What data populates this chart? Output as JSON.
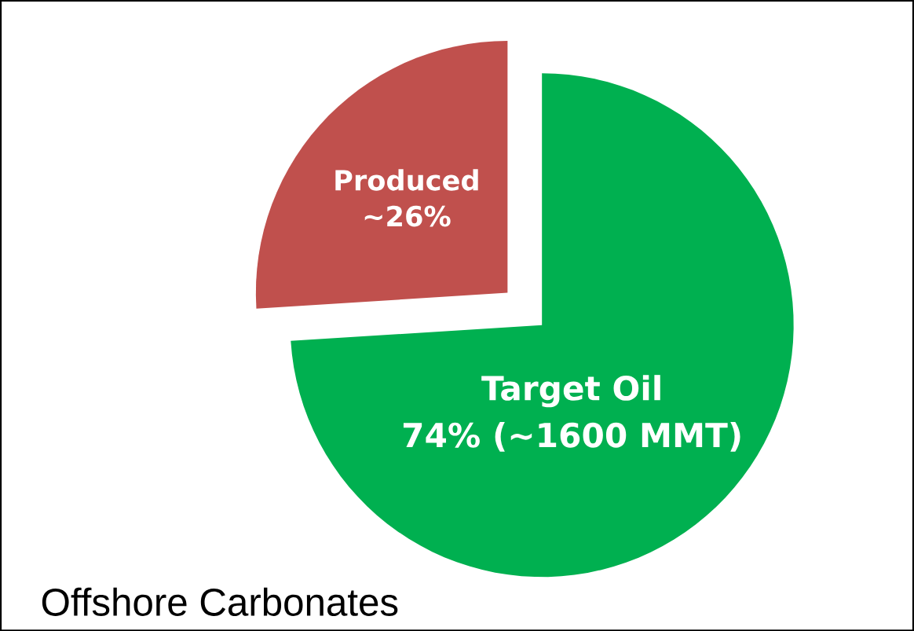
{
  "chart_data": {
    "type": "pie",
    "title": "Offshore Carbonates",
    "categories": [
      "Produced",
      "Target Oil"
    ],
    "values": [
      26,
      74
    ],
    "colors": [
      "#c0504d",
      "#00b050"
    ],
    "value_labels": [
      "~26%",
      "74% (~1600 MMT)"
    ]
  }
}
